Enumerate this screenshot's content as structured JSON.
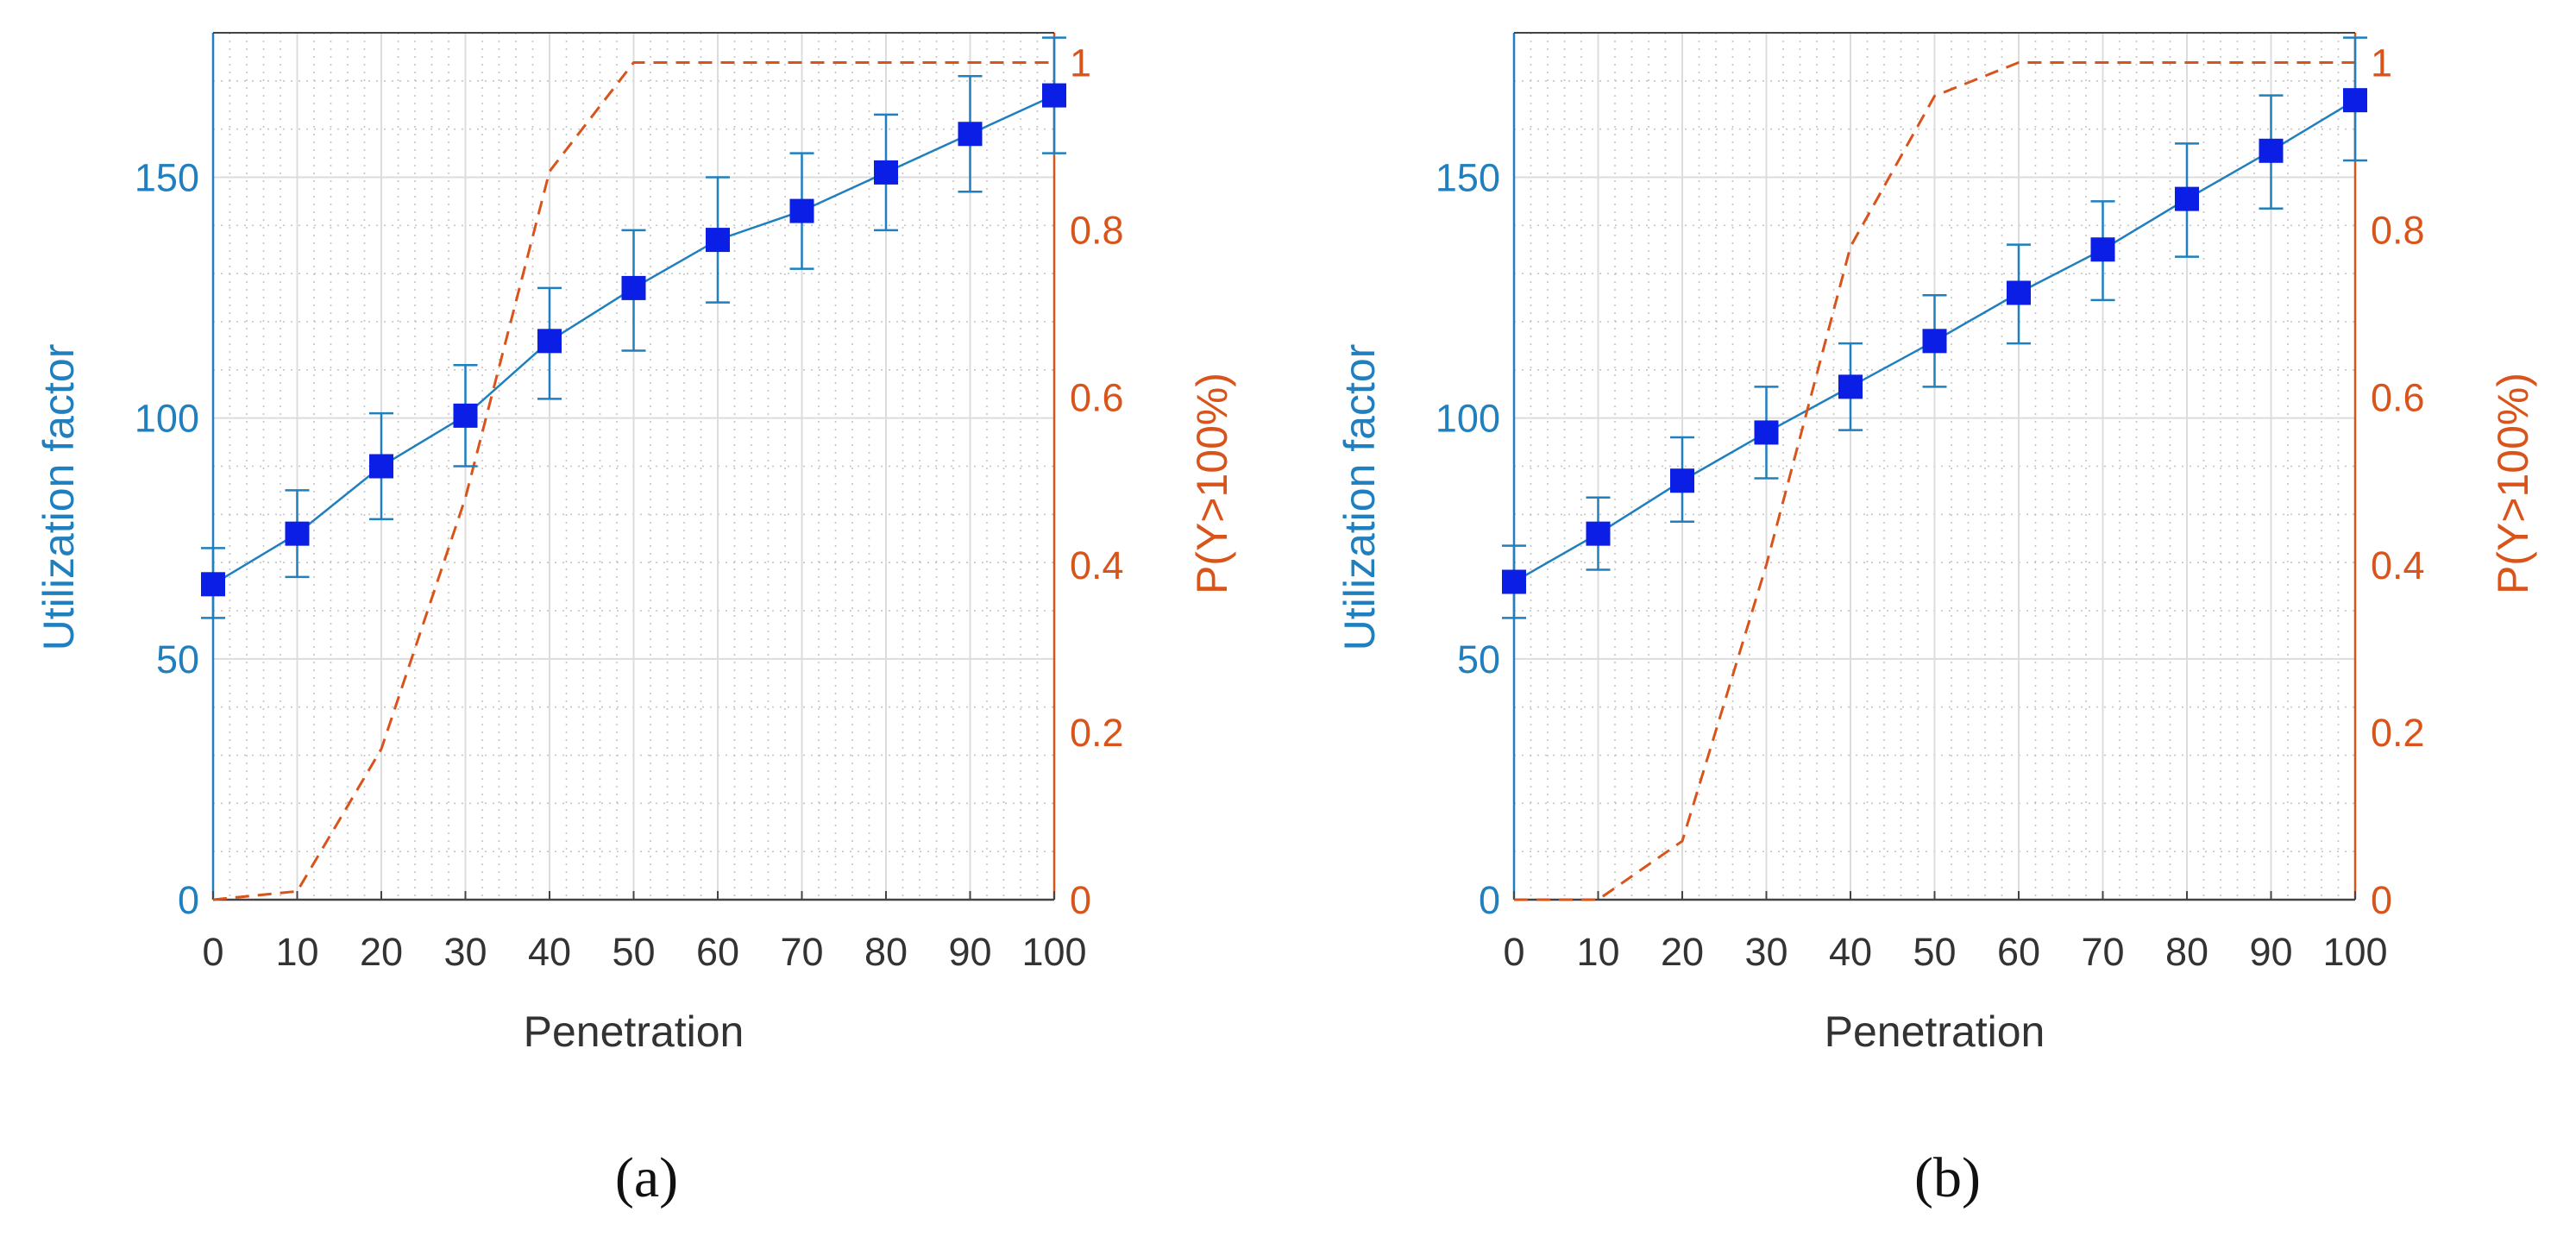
{
  "chart_data": [
    {
      "type": "line",
      "caption": "(a)",
      "xlabel": "Penetration",
      "ylabel": "Utilization factor",
      "ylabel_right": "P(Y>100%)",
      "x": [
        0,
        10,
        20,
        30,
        40,
        50,
        60,
        70,
        80,
        90,
        100
      ],
      "x_ticks": [
        "0",
        "10",
        "20",
        "30",
        "40",
        "50",
        "60",
        "70",
        "80",
        "90",
        "100"
      ],
      "xlim": [
        0,
        100
      ],
      "ylim": [
        0,
        180
      ],
      "ylim_right": [
        0,
        1.0355
      ],
      "y_ticks": [
        "0",
        "50",
        "100",
        "150"
      ],
      "y_ticks_right": [
        "0",
        "0.2",
        "0.4",
        "0.6",
        "0.8",
        "1"
      ],
      "grid": "major and minor",
      "series": [
        {
          "name": "Utilization factor",
          "axis": "left",
          "style": "solid line, square markers, error bars",
          "color": "#1f7fbf",
          "marker_color": "#0a1ee6",
          "values": [
            65.5,
            76,
            90,
            100.5,
            116,
            127,
            137,
            143,
            151,
            159,
            167
          ],
          "error_low": [
            58.5,
            67,
            79,
            90,
            104,
            114,
            124,
            131,
            139,
            147,
            155
          ],
          "error_high": [
            73,
            85,
            101,
            111,
            127,
            139,
            150,
            155,
            163,
            171,
            179
          ]
        },
        {
          "name": "P(Y>100%)",
          "axis": "right",
          "style": "dashed line",
          "color": "#d9541a",
          "values": [
            0,
            0.01,
            0.18,
            0.48,
            0.87,
            1.0,
            1.0,
            1.0,
            1.0,
            1.0,
            1.0
          ]
        }
      ]
    },
    {
      "type": "line",
      "caption": "(b)",
      "xlabel": "Penetration",
      "ylabel": "Utilization factor",
      "ylabel_right": "P(Y>100%)",
      "x": [
        0,
        10,
        20,
        30,
        40,
        50,
        60,
        70,
        80,
        90,
        100
      ],
      "x_ticks": [
        "0",
        "10",
        "20",
        "30",
        "40",
        "50",
        "60",
        "70",
        "80",
        "90",
        "100"
      ],
      "xlim": [
        0,
        100
      ],
      "ylim": [
        0,
        180
      ],
      "ylim_right": [
        0,
        1.0355
      ],
      "y_ticks": [
        "0",
        "50",
        "100",
        "150"
      ],
      "y_ticks_right": [
        "0",
        "0.2",
        "0.4",
        "0.6",
        "0.8",
        "1"
      ],
      "grid": "major and minor",
      "series": [
        {
          "name": "Utilization factor",
          "axis": "left",
          "style": "solid line, square markers, error bars",
          "color": "#1f7fbf",
          "marker_color": "#0a1ee6",
          "values": [
            66,
            76,
            87,
            97,
            106.5,
            116,
            126,
            135,
            145.5,
            155.5,
            166
          ],
          "error_low": [
            58.5,
            68.5,
            78.5,
            87.5,
            97.5,
            106.5,
            115.5,
            124.5,
            133.5,
            143.5,
            153.5
          ],
          "error_high": [
            73.5,
            83.5,
            96,
            106.5,
            115.5,
            125.5,
            136,
            145,
            157,
            167,
            179
          ]
        },
        {
          "name": "P(Y>100%)",
          "axis": "right",
          "style": "dashed line",
          "color": "#d9541a",
          "values": [
            0,
            0,
            0.07,
            0.4,
            0.78,
            0.96,
            1.0,
            1.0,
            1.0,
            1.0,
            1.0
          ]
        }
      ]
    }
  ]
}
